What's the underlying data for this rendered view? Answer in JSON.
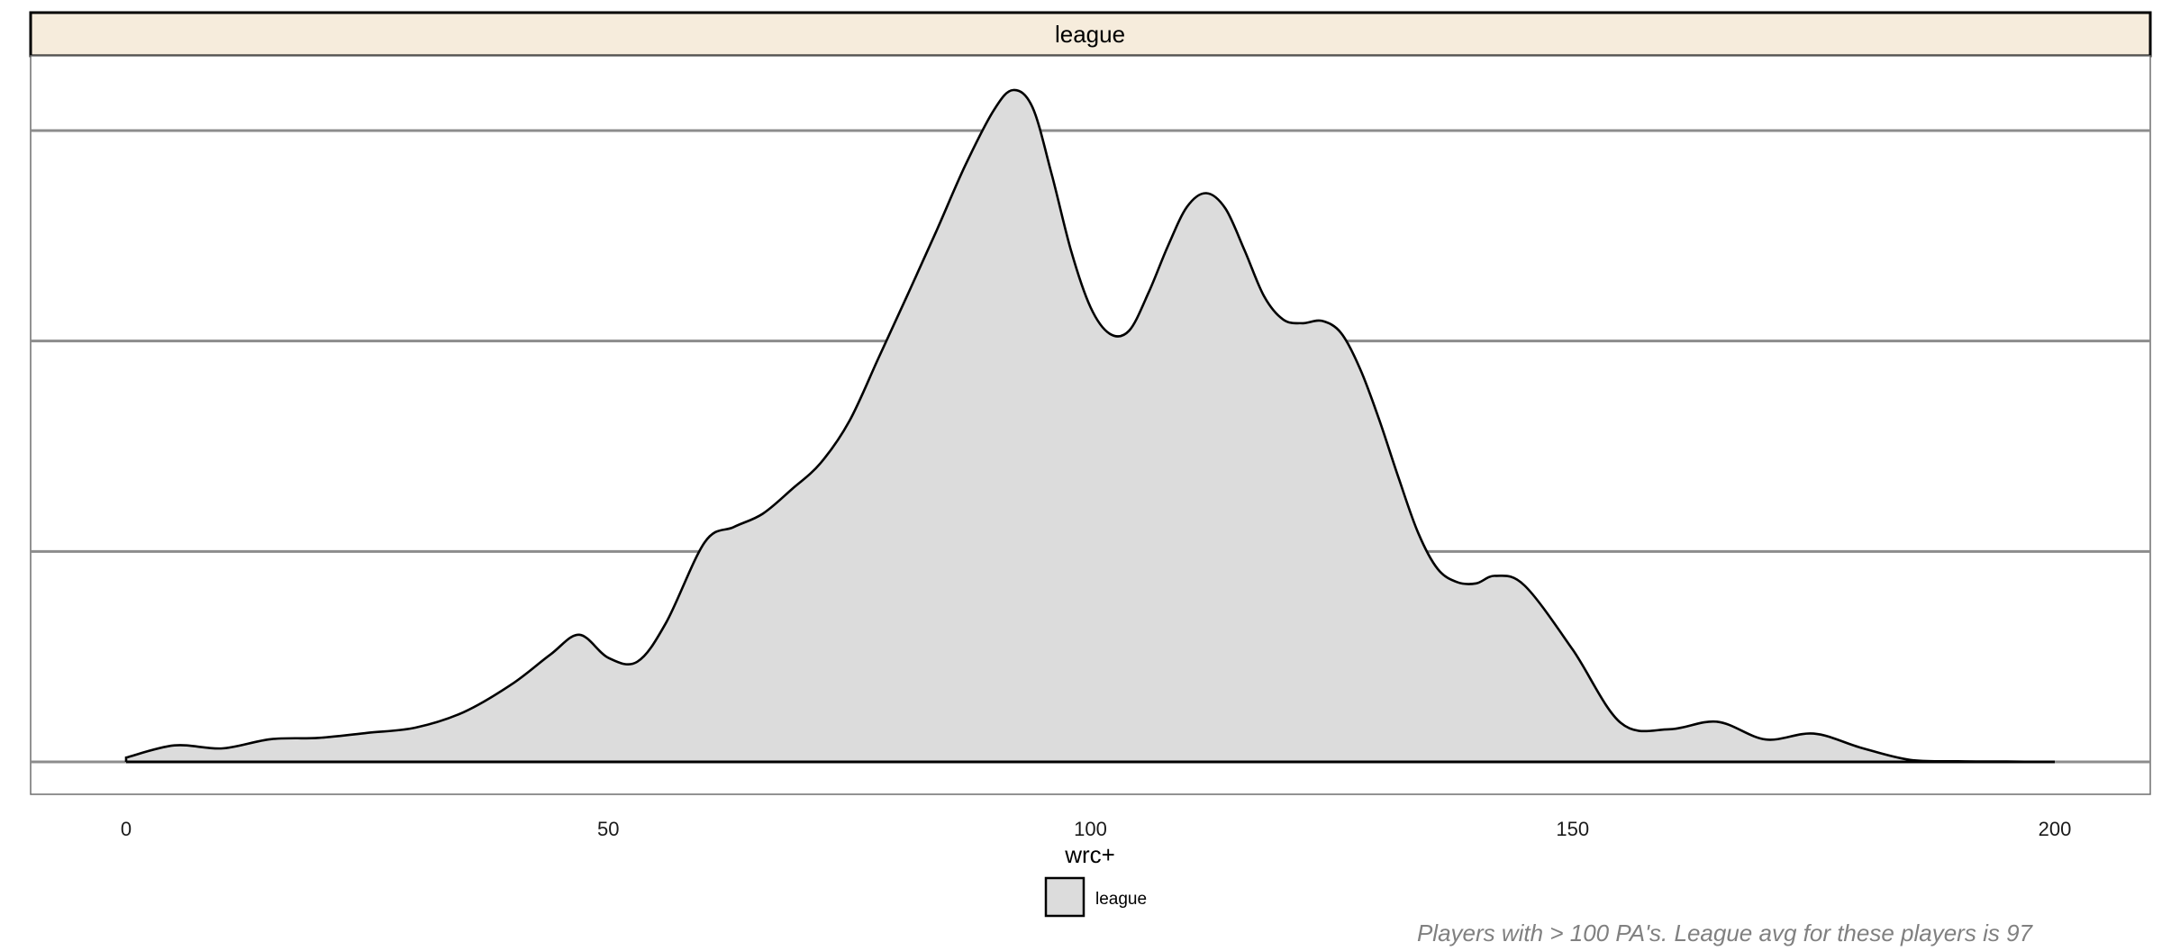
{
  "chart_data": {
    "type": "area",
    "facet_label": "league",
    "xlabel": "wrc+",
    "ylabel": "",
    "xlim": [
      0,
      200
    ],
    "x_ticks": [
      0,
      50,
      100,
      150,
      200
    ],
    "x_tick_labels": [
      "0",
      "50",
      "100",
      "150",
      "200"
    ],
    "y_ticks_count": 4,
    "y_tick_labels_shown": false,
    "grid": "horizontal major only",
    "legend": {
      "position": "bottom",
      "entries": [
        {
          "name": "league",
          "fill": "#dcdcdc"
        }
      ]
    },
    "caption": "Players with > 100 PA's. League avg for these players is 97",
    "colors": {
      "fill": "#dcdcdc",
      "line": "#000000",
      "strip_bg": "#f6ecdc",
      "grid": "#8c8c8c",
      "caption": "#808080"
    },
    "series": [
      {
        "name": "league",
        "x": [
          0,
          5,
          10,
          15,
          20,
          25,
          30,
          35,
          40,
          44,
          47,
          50,
          53,
          56,
          60,
          63,
          66,
          69,
          72,
          75,
          78,
          81,
          84,
          87,
          90,
          92,
          94,
          96,
          98,
          100,
          102,
          104,
          106,
          108,
          110,
          112,
          114,
          116,
          118,
          120,
          122,
          124,
          126,
          128,
          130,
          132,
          134,
          136,
          138,
          140,
          142,
          145,
          150,
          155,
          160,
          165,
          170,
          175,
          180,
          185,
          190,
          195,
          200
        ],
        "y": [
          0.0013,
          0.005,
          0.0041,
          0.0069,
          0.0073,
          0.0088,
          0.0104,
          0.0151,
          0.0236,
          0.0326,
          0.0386,
          0.0316,
          0.0304,
          0.0423,
          0.0667,
          0.0713,
          0.0753,
          0.0827,
          0.0907,
          0.1035,
          0.1225,
          0.1416,
          0.161,
          0.181,
          0.198,
          0.204,
          0.1987,
          0.1782,
          0.1551,
          0.1381,
          0.13,
          0.1309,
          0.1423,
          0.1564,
          0.1685,
          0.1727,
          0.168,
          0.1552,
          0.1414,
          0.1343,
          0.1332,
          0.1339,
          0.1302,
          0.1191,
          0.1034,
          0.0858,
          0.0694,
          0.0586,
          0.0546,
          0.0542,
          0.0565,
          0.0536,
          0.0341,
          0.0118,
          0.0099,
          0.0122,
          0.0068,
          0.0086,
          0.0042,
          0.0006,
          0.0002,
          0.0001,
          0.0
        ]
      }
    ]
  }
}
